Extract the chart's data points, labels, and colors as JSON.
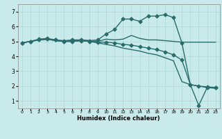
{
  "xlabel": "Humidex (Indice chaleur)",
  "x_ticks": [
    0,
    1,
    2,
    3,
    4,
    5,
    6,
    7,
    8,
    9,
    10,
    11,
    12,
    13,
    14,
    15,
    16,
    17,
    18,
    19,
    20,
    21,
    22,
    23
  ],
  "y_ticks": [
    1,
    2,
    3,
    4,
    5,
    6,
    7
  ],
  "xlim": [
    -0.5,
    23.5
  ],
  "ylim": [
    0.5,
    7.5
  ],
  "bg_color": "#c8eaea",
  "grid_color": "#b0d8d8",
  "line_color": "#2a6b6b",
  "lines": [
    {
      "x": [
        0,
        1,
        2,
        3,
        4,
        5,
        6,
        7,
        8,
        9,
        10,
        11,
        12,
        13,
        14,
        15,
        16,
        17,
        18,
        19,
        20,
        21,
        22,
        23
      ],
      "y": [
        4.9,
        5.0,
        5.1,
        5.15,
        5.05,
        5.0,
        5.05,
        5.1,
        5.05,
        5.0,
        5.15,
        5.1,
        5.15,
        5.4,
        5.2,
        5.1,
        5.1,
        5.05,
        5.0,
        4.95,
        4.95,
        4.95,
        4.95,
        4.95
      ],
      "marker": null
    },
    {
      "x": [
        0,
        1,
        2,
        3,
        4,
        5,
        6,
        7,
        8,
        9,
        10,
        11,
        12,
        13,
        14,
        15,
        16,
        17,
        18,
        19,
        20,
        21,
        22,
        23
      ],
      "y": [
        4.9,
        5.0,
        5.15,
        5.2,
        5.1,
        5.0,
        5.0,
        5.05,
        5.0,
        4.95,
        4.95,
        4.9,
        4.8,
        4.75,
        4.65,
        4.55,
        4.45,
        4.3,
        4.1,
        3.75,
        2.1,
        0.7,
        1.9,
        1.9
      ],
      "marker": "D"
    },
    {
      "x": [
        0,
        1,
        2,
        3,
        4,
        5,
        6,
        7,
        8,
        9,
        10,
        11,
        12,
        13,
        14,
        15,
        16,
        17,
        18,
        19,
        20,
        21,
        22,
        23
      ],
      "y": [
        4.9,
        5.0,
        5.1,
        5.15,
        5.05,
        5.0,
        5.0,
        5.05,
        5.0,
        4.9,
        4.8,
        4.7,
        4.55,
        4.45,
        4.35,
        4.2,
        4.1,
        3.9,
        3.7,
        2.3,
        2.1,
        2.0,
        1.9,
        1.85
      ],
      "marker": null
    },
    {
      "x": [
        0,
        1,
        2,
        3,
        4,
        5,
        6,
        7,
        8,
        9,
        10,
        11,
        12,
        13,
        14,
        15,
        16,
        17,
        18,
        19,
        20,
        21,
        22,
        23
      ],
      "y": [
        4.9,
        5.0,
        5.1,
        5.15,
        5.1,
        5.05,
        5.1,
        5.1,
        5.05,
        5.1,
        5.5,
        5.8,
        6.5,
        6.5,
        6.35,
        6.7,
        6.7,
        6.8,
        6.6,
        4.9,
        2.1,
        2.0,
        1.95,
        1.9
      ],
      "marker": "D"
    }
  ],
  "marker_size": 2.5,
  "line_width": 1.0
}
